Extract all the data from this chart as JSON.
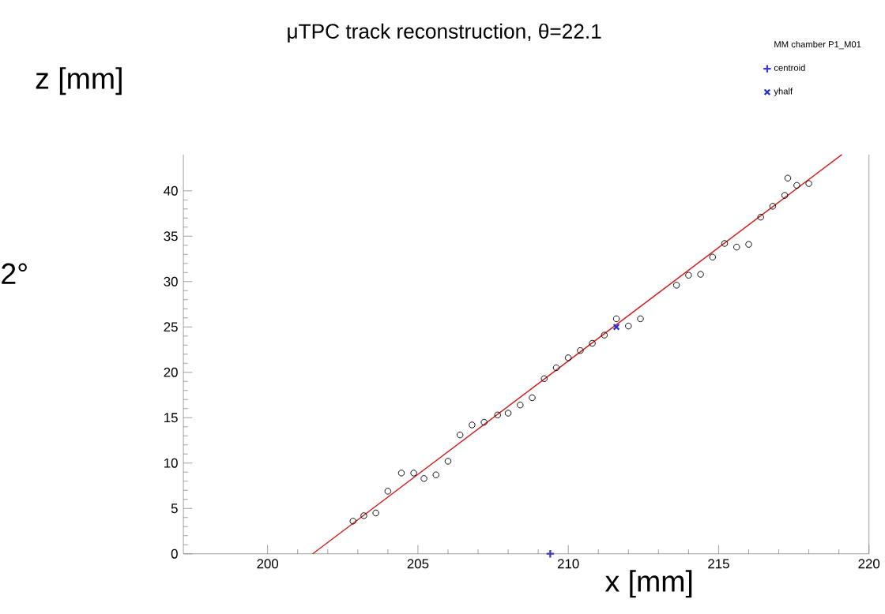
{
  "chart_data": {
    "type": "scatter",
    "title": "μTPC track reconstruction,   θ=22.1",
    "xlabel": "x [mm]",
    "ylabel": "z [mm]",
    "legend_title": "MM chamber P1_M01",
    "legend": "top right",
    "grid": false,
    "xlim": [
      197.2,
      220
    ],
    "ylim": [
      0,
      44
    ],
    "xticks": [
      200,
      205,
      210,
      215,
      220
    ],
    "yticks": [
      0,
      5,
      10,
      15,
      20,
      25,
      30,
      35,
      40
    ],
    "annotations": [
      "2°"
    ],
    "series": [
      {
        "color": "#000000",
        "marker": "circle",
        "x": [
          202.84,
          203.2,
          203.6,
          204.0,
          204.45,
          204.86,
          205.2,
          205.6,
          206.0,
          206.4,
          206.8,
          207.2,
          207.65,
          208.0,
          208.4,
          208.8,
          209.2,
          209.6,
          210.0,
          210.4,
          210.8,
          211.2,
          211.6,
          212.0,
          212.4,
          213.6,
          214.0,
          214.4,
          214.8,
          215.2,
          215.6,
          216.0,
          216.4,
          216.8,
          217.2,
          217.3,
          217.6,
          218.0
        ],
        "values": [
          3.6,
          4.2,
          4.5,
          6.9,
          8.9,
          8.9,
          8.3,
          8.7,
          10.2,
          13.1,
          14.2,
          14.5,
          15.3,
          15.5,
          16.4,
          17.2,
          19.3,
          20.5,
          21.6,
          22.4,
          23.2,
          24.1,
          25.9,
          25.1,
          25.9,
          29.6,
          30.7,
          30.8,
          32.7,
          34.2,
          33.8,
          34.1,
          37.1,
          38.3,
          39.5,
          41.4,
          40.6,
          40.8
        ]
      },
      {
        "name": "centroid",
        "color": "#3a3acc",
        "marker": "cross",
        "x": [
          209.4
        ],
        "values": [
          0
        ]
      },
      {
        "name": "yhalf",
        "color": "#1f2fe0",
        "marker": "cross",
        "x": [
          211.6
        ],
        "values": [
          25
        ]
      },
      {
        "type": "line",
        "color": "#d42020",
        "marker": "none",
        "line_style": "solid",
        "x": [
          201.5,
          219.1
        ],
        "values": [
          0,
          44
        ]
      }
    ]
  }
}
